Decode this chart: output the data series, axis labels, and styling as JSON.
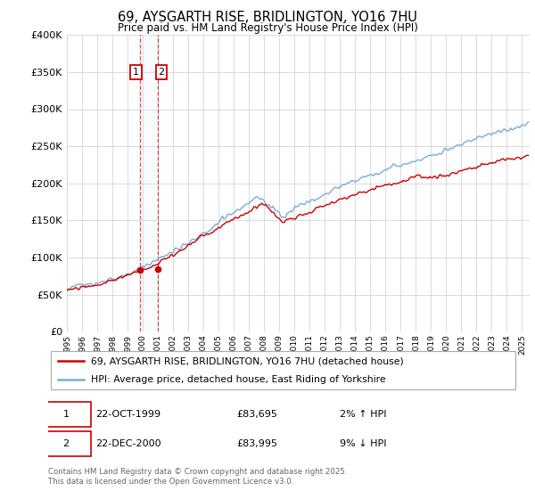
{
  "title": "69, AYSGARTH RISE, BRIDLINGTON, YO16 7HU",
  "subtitle": "Price paid vs. HM Land Registry's House Price Index (HPI)",
  "legend_line1": "69, AYSGARTH RISE, BRIDLINGTON, YO16 7HU (detached house)",
  "legend_line2": "HPI: Average price, detached house, East Riding of Yorkshire",
  "sale1_date": "22-OCT-1999",
  "sale1_price": "£83,695",
  "sale1_hpi": "2% ↑ HPI",
  "sale2_date": "22-DEC-2000",
  "sale2_price": "£83,995",
  "sale2_hpi": "9% ↓ HPI",
  "footer": "Contains HM Land Registry data © Crown copyright and database right 2025.\nThis data is licensed under the Open Government Licence v3.0.",
  "sale1_x": 1999.81,
  "sale1_y": 83695,
  "sale2_x": 2000.97,
  "sale2_y": 83995,
  "red_color": "#cc0000",
  "blue_color": "#7aadd4",
  "shade_color": "#ddeeff",
  "grid_color": "#cccccc",
  "ylim": [
    0,
    400000
  ],
  "xlim_start": 1995.0,
  "xlim_end": 2025.5
}
